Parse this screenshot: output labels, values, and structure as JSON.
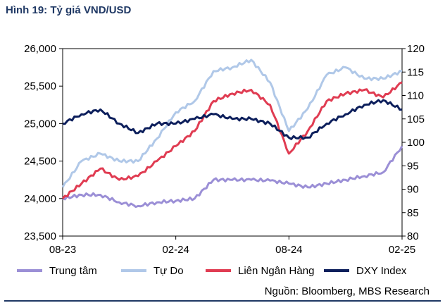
{
  "title": "Hình 19: Tỷ giá VND/USD",
  "source": "Nguồn: Bloomberg, MBS Research",
  "colors": {
    "trung_tam": "#9b8fd6",
    "tu_do": "#b0c8e8",
    "lien_ngan_hang": "#e03c52",
    "dxy": "#0d1f5c",
    "title": "#1f3864"
  },
  "chart_data": {
    "type": "line",
    "x_ticks": [
      "08-23",
      "02-24",
      "08-24",
      "02-25"
    ],
    "xlim": [
      "2023-08",
      "2025-02"
    ],
    "left_axis": {
      "ylim": [
        23500,
        26000
      ],
      "ticks": [
        "23,500",
        "24,000",
        "24,500",
        "25,000",
        "25,500",
        "26,000"
      ]
    },
    "right_axis": {
      "ylim": [
        80,
        120
      ],
      "ticks": [
        "80",
        "85",
        "90",
        "95",
        "100",
        "105",
        "110",
        "115",
        "120"
      ]
    },
    "grid": false,
    "legend_position": "bottom",
    "series": [
      {
        "name": "Trung tâm",
        "axis": "left",
        "color": "#9b8fd6",
        "x": [
          "2023-08",
          "2023-09",
          "2023-10",
          "2023-11",
          "2023-12",
          "2024-01",
          "2024-02",
          "2024-03",
          "2024-04",
          "2024-05",
          "2024-06",
          "2024-07",
          "2024-08",
          "2024-09",
          "2024-10",
          "2024-11",
          "2024-12",
          "2025-01",
          "2025-02"
        ],
        "values": [
          24000,
          24050,
          24050,
          23950,
          23900,
          23950,
          23970,
          24000,
          24250,
          24250,
          24250,
          24240,
          24200,
          24150,
          24200,
          24250,
          24300,
          24350,
          24700
        ]
      },
      {
        "name": "Tự Do",
        "axis": "left",
        "color": "#b0c8e8",
        "x": [
          "2023-08",
          "2023-09",
          "2023-10",
          "2023-11",
          "2023-12",
          "2024-01",
          "2024-02",
          "2024-03",
          "2024-04",
          "2024-05",
          "2024-06",
          "2024-07",
          "2024-08",
          "2024-09",
          "2024-10",
          "2024-11",
          "2024-12",
          "2025-01",
          "2025-02"
        ],
        "values": [
          24150,
          24500,
          24600,
          24500,
          24500,
          24800,
          25150,
          25300,
          25700,
          25750,
          25850,
          25550,
          24900,
          25200,
          25650,
          25750,
          25600,
          25600,
          25700
        ]
      },
      {
        "name": "Liên Ngân Hàng",
        "axis": "left",
        "color": "#e03c52",
        "x": [
          "2023-08",
          "2023-09",
          "2023-10",
          "2023-11",
          "2023-12",
          "2024-01",
          "2024-02",
          "2024-03",
          "2024-04",
          "2024-05",
          "2024-06",
          "2024-07",
          "2024-08",
          "2024-09",
          "2024-10",
          "2024-11",
          "2024-12",
          "2025-01",
          "2025-02"
        ],
        "values": [
          24000,
          24200,
          24400,
          24250,
          24300,
          24500,
          24700,
          24900,
          25300,
          25400,
          25450,
          25250,
          24600,
          24900,
          25300,
          25400,
          25450,
          25350,
          25550
        ]
      },
      {
        "name": "DXY Index",
        "axis": "right",
        "color": "#0d1f5c",
        "x": [
          "2023-08",
          "2023-09",
          "2023-10",
          "2023-11",
          "2023-12",
          "2024-01",
          "2024-02",
          "2024-03",
          "2024-04",
          "2024-05",
          "2024-06",
          "2024-07",
          "2024-08",
          "2024-09",
          "2024-10",
          "2024-11",
          "2024-12",
          "2025-01",
          "2025-02"
        ],
        "values": [
          104,
          106,
          107,
          104,
          102,
          104,
          104,
          105,
          106,
          105,
          105,
          104,
          101,
          101,
          104,
          106,
          108,
          109,
          107
        ]
      }
    ]
  }
}
